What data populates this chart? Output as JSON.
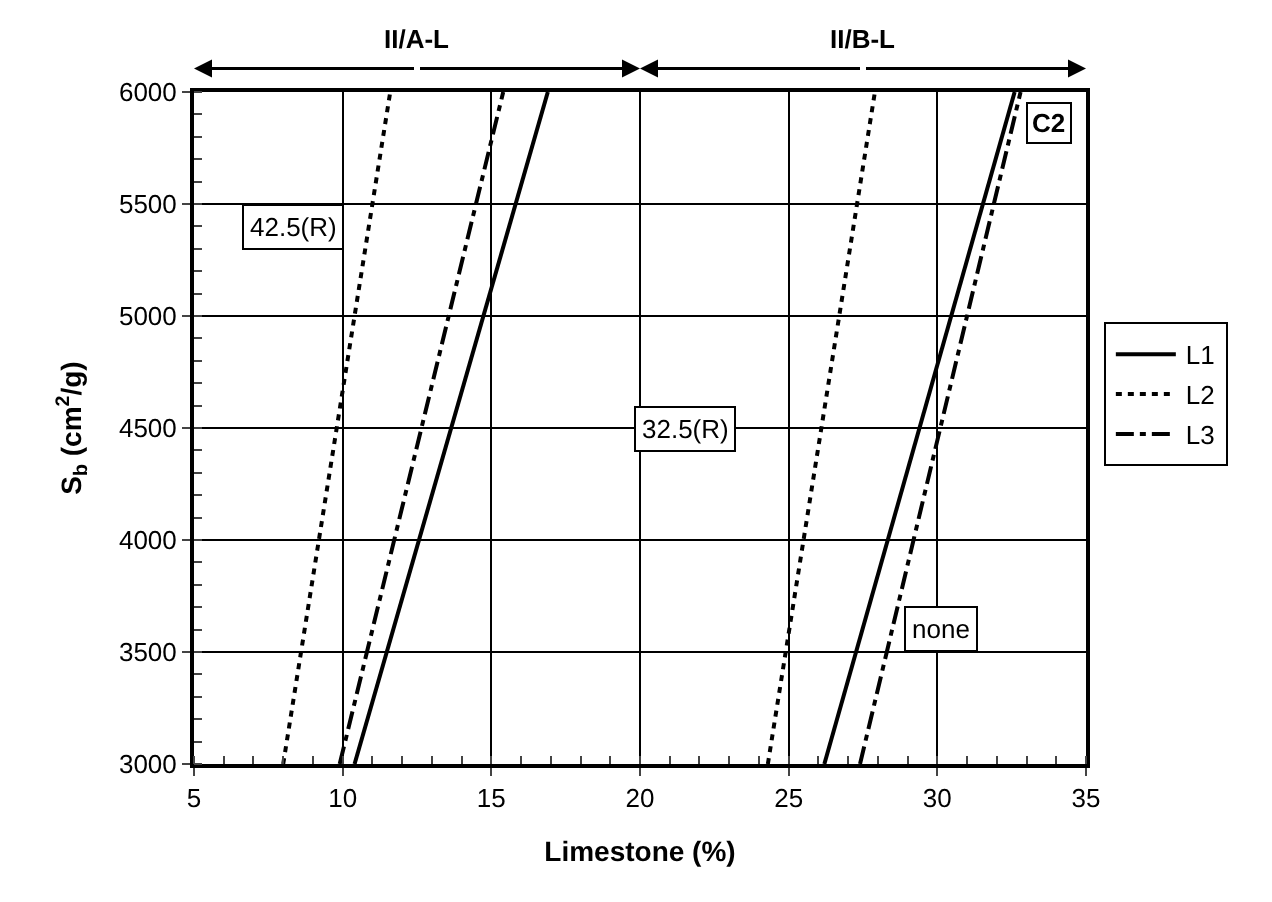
{
  "chart_data": {
    "type": "line",
    "xlabel": "Limestone (%)",
    "ylabel": "S$_{b}$ (cm$^{2}$/g)",
    "xlim": [
      5,
      35
    ],
    "xticks": [
      5,
      10,
      15,
      20,
      25,
      30,
      35
    ],
    "ylim": [
      3000,
      6000
    ],
    "yticks": [
      3000,
      3500,
      4000,
      4500,
      5000,
      5500,
      6000
    ],
    "grid": true,
    "legend": "right",
    "marker": "none",
    "series": [
      {
        "name": "L1",
        "color": "#000000",
        "line_style": "solid",
        "x": [
          10.4,
          16.9,
          null,
          26.2,
          32.6
        ],
        "values": [
          3000,
          6000,
          null,
          3000,
          6000
        ]
      },
      {
        "name": "L2",
        "color": "#000000",
        "line_style": "dotted",
        "x": [
          8.0,
          11.6,
          null,
          24.3,
          27.9
        ],
        "values": [
          3000,
          6000,
          null,
          3000,
          6000
        ]
      },
      {
        "name": "L3",
        "color": "#000000",
        "line_style": "dashed",
        "x": [
          9.9,
          15.4,
          null,
          27.4,
          32.8
        ],
        "values": [
          3000,
          6000,
          null,
          3000,
          6000
        ]
      }
    ],
    "annotations": [
      "II/A-L",
      "II/B-L",
      "42.5(R)",
      "32.5(R)",
      "none",
      "C2"
    ]
  }
}
